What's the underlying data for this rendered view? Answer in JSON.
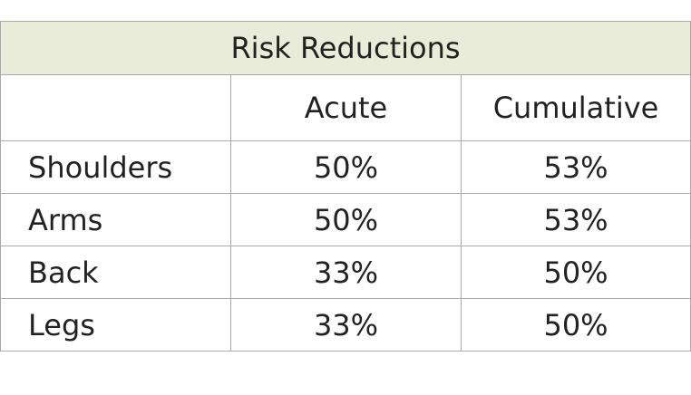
{
  "table": {
    "title": "Risk Reductions",
    "columns": [
      "",
      "Acute",
      "Cumulative"
    ],
    "rows": [
      [
        "Shoulders",
        "50%",
        "53%"
      ],
      [
        "Arms",
        "50%",
        "53%"
      ],
      [
        "Back",
        "33%",
        "50%"
      ],
      [
        "Legs",
        "33%",
        "50%"
      ]
    ]
  }
}
